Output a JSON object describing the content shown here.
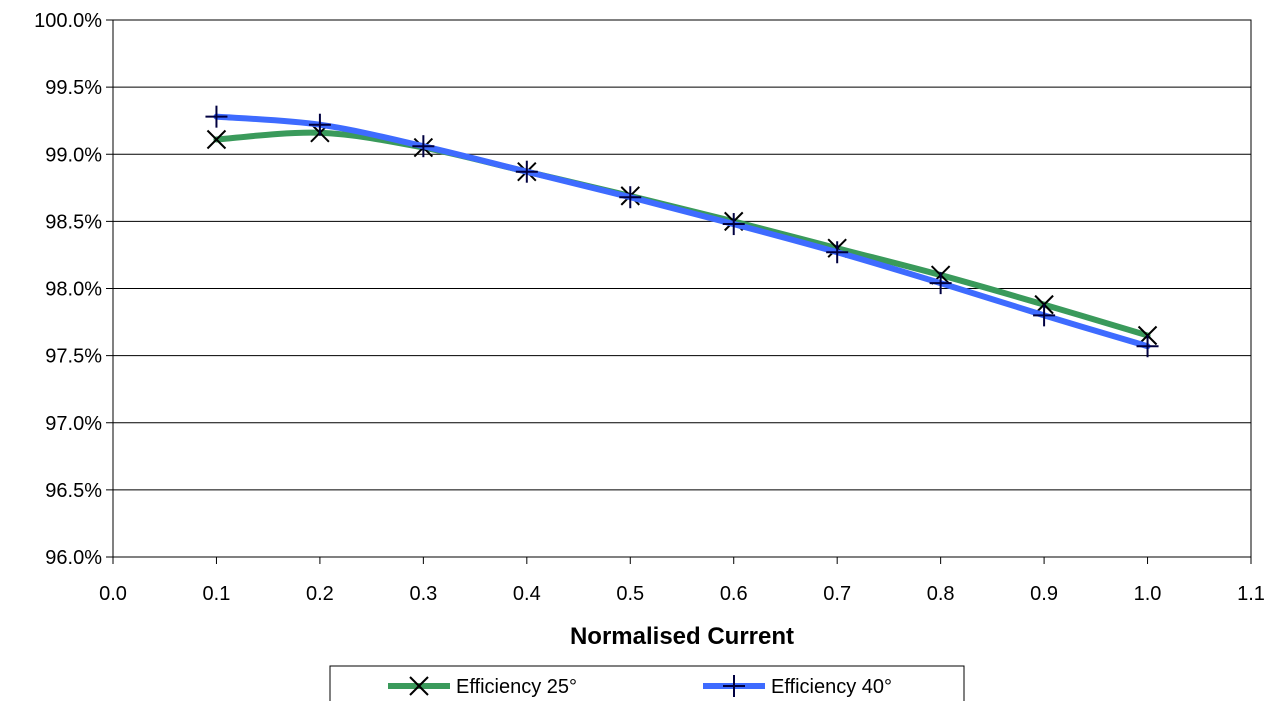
{
  "chart_data": {
    "type": "line",
    "title": "",
    "xlabel": "Normalised Current",
    "ylabel": "",
    "xlim": [
      0.0,
      1.1
    ],
    "ylim": [
      96.0,
      100.0
    ],
    "x_ticks": [
      0.0,
      0.1,
      0.2,
      0.3,
      0.4,
      0.5,
      0.6,
      0.7,
      0.8,
      0.9,
      1.0,
      1.1
    ],
    "x_tick_labels": [
      "0.0",
      "0.1",
      "0.2",
      "0.3",
      "0.4",
      "0.5",
      "0.6",
      "0.7",
      "0.8",
      "0.9",
      "1.0",
      "1.1"
    ],
    "y_ticks": [
      96.0,
      96.5,
      97.0,
      97.5,
      98.0,
      98.5,
      99.0,
      99.5,
      100.0
    ],
    "y_tick_labels": [
      "96.0%",
      "96.5%",
      "97.0%",
      "97.5%",
      "98.0%",
      "98.5%",
      "99.0%",
      "99.5%",
      "100.0%"
    ],
    "grid": "horizontal",
    "legend_position": "bottom-center",
    "series": [
      {
        "name": "Efficiency 25°",
        "color": "#3a9a5b",
        "marker": "x",
        "x": [
          0.1,
          0.2,
          0.3,
          0.4,
          0.5,
          0.6,
          0.7,
          0.8,
          0.9,
          1.0
        ],
        "y": [
          99.11,
          99.16,
          99.05,
          98.87,
          98.69,
          98.5,
          98.3,
          98.1,
          97.88,
          97.65
        ]
      },
      {
        "name": "Efficiency 40°",
        "color": "#3e6bff",
        "marker": "plus",
        "x": [
          0.1,
          0.2,
          0.3,
          0.4,
          0.5,
          0.6,
          0.7,
          0.8,
          0.9,
          1.0
        ],
        "y": [
          99.28,
          99.22,
          99.06,
          98.87,
          98.68,
          98.48,
          98.27,
          98.04,
          97.8,
          97.57
        ]
      }
    ]
  }
}
